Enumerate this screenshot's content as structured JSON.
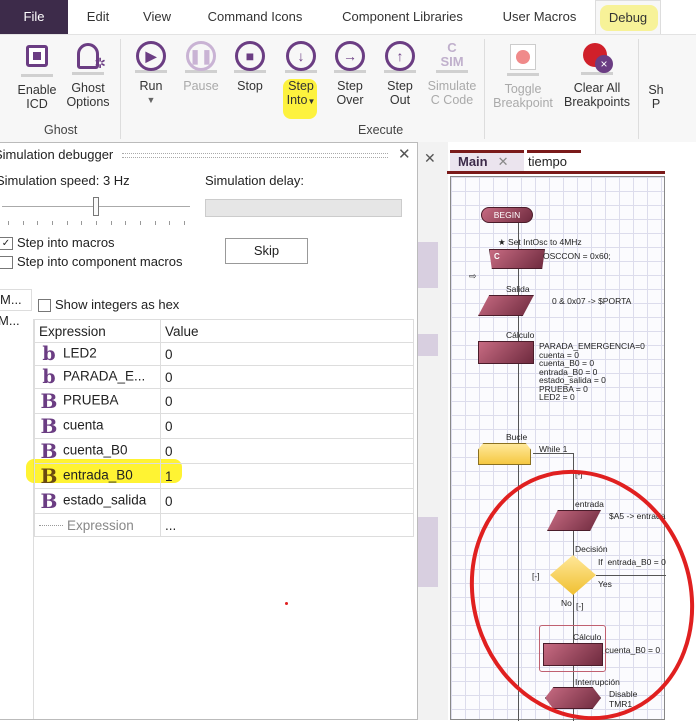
{
  "menu": {
    "tabs": [
      "File",
      "Edit",
      "View",
      "Command Icons",
      "Component Libraries",
      "User Macros",
      "Debug"
    ],
    "active": "Debug"
  },
  "ribbon": {
    "ghost_group": "Ghost",
    "execute_group": "Execute",
    "buttons": {
      "enable_icd": [
        "Enable",
        "ICD"
      ],
      "ghost_options": [
        "Ghost",
        "Options"
      ],
      "run": "Run",
      "pause": "Pause",
      "stop": "Stop",
      "step_into": [
        "Step",
        "Into"
      ],
      "step_over": [
        "Step",
        "Over"
      ],
      "step_out": [
        "Step",
        "Out"
      ],
      "simulate_c": [
        "Simulate",
        "C Code"
      ],
      "toggle_bp": [
        "Toggle",
        "Breakpoint"
      ],
      "clear_bp": [
        "Clear All",
        "Breakpoints"
      ],
      "cut_off": [
        "Sh",
        "P"
      ]
    },
    "csim_icon": [
      "C",
      "SIM"
    ]
  },
  "debugger": {
    "title": "Simulation debugger",
    "speed_label": "Simulation speed: 3 Hz",
    "speed_level": 6,
    "speed_ticks": 13,
    "delay_label": "Simulation delay:",
    "step_macros": {
      "label": "Step into macros",
      "checked": true
    },
    "step_component": {
      "label": "Step into component macros",
      "checked": false
    },
    "skip": "Skip",
    "show_hex": {
      "label": "Show integers as hex",
      "checked": false
    },
    "side_items": [
      "M...",
      "M..."
    ],
    "columns": [
      "Expression",
      "Value"
    ],
    "rows": [
      {
        "icon": "b",
        "name": "LED2",
        "value": "0"
      },
      {
        "icon": "b",
        "name": "PARADA_E...",
        "value": "0"
      },
      {
        "icon": "B",
        "name": "PRUEBA",
        "value": "0"
      },
      {
        "icon": "B",
        "name": "cuenta",
        "value": "0"
      },
      {
        "icon": "B",
        "name": "cuenta_B0",
        "value": "0"
      },
      {
        "icon": "B",
        "name": "entrada_B0",
        "value": "1",
        "highlighted": true
      },
      {
        "icon": "B",
        "name": "estado_salida",
        "value": "0"
      }
    ],
    "new_row": {
      "name": "Expression",
      "value": "..."
    }
  },
  "editor": {
    "tabs": [
      "Main",
      "tiempo"
    ],
    "flow": {
      "begin": "BEGIN",
      "comment": "Set IntOsc to 4MHz",
      "c_tag": "C",
      "c_code": "OSCCON = 0x60;",
      "salida_label": "Salida",
      "salida_text": "0 & 0x07 -> $PORTA",
      "calc_label": "Cálculo",
      "calc_text": "PARADA_EMERGENCIA=0\ncuenta = 0\ncuenta_B0 = 0\nentrada_B0 = 0\nestado_salida = 0\nPRUEBA = 0\nLED2 = 0",
      "loop_label": "Bucle",
      "loop_text": "While 1",
      "collapse": "[-]",
      "entrada_label": "entrada",
      "entrada_text": "$A5 -> entrada",
      "decision_label": "Decisión",
      "decision_text": "If  entrada_B0 = 0",
      "yes": "Yes",
      "no": "No",
      "calc2_label": "Cálculo",
      "calc2_text": "cuenta_B0 = 0",
      "int_label": "Interrupción",
      "int_text": "Disable\nTMR1"
    }
  },
  "colors": {
    "accent": "#6b3d83",
    "file_tab": "#3d2b4a",
    "highlight": "#fff000",
    "annotation": "#e02020",
    "block": "#8e3a52"
  }
}
